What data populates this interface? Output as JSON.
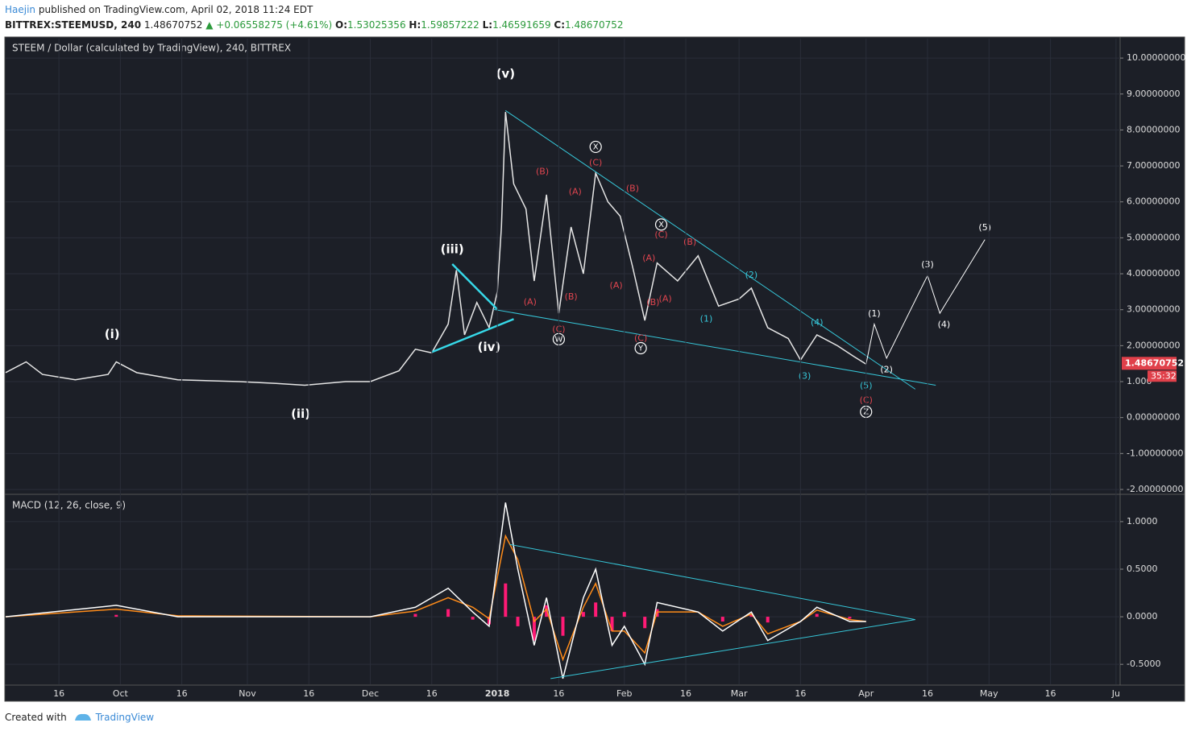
{
  "header": {
    "author": "Haejin",
    "published": "published on TradingView.com, April 02, 2018 11:24 EDT",
    "symbol": "BITTREX:STEEMUSD, 240",
    "last": "1.48670752",
    "change": "▲ +0.06558275 (+4.61%)",
    "ohlc": [
      {
        "label": "O:",
        "value": "1.53025356"
      },
      {
        "label": "H:",
        "value": "1.59857222"
      },
      {
        "label": "L:",
        "value": "1.46591659"
      },
      {
        "label": "C:",
        "value": "1.48670752"
      }
    ]
  },
  "chart_data": [
    {
      "type": "line",
      "title": "STEEM / Dollar (calculated by TradingView), 240, BITTREX",
      "x": [
        "2017-09-03",
        "2017-09-08",
        "2017-09-12",
        "2017-09-20",
        "2017-09-28",
        "2017-09-30",
        "2017-10-05",
        "2017-10-15",
        "2017-10-30",
        "2017-11-08",
        "2017-11-15",
        "2017-11-25",
        "2017-12-01",
        "2017-12-08",
        "2017-12-12",
        "2017-12-16",
        "2017-12-20",
        "2017-12-22",
        "2017-12-24",
        "2017-12-27",
        "2017-12-30",
        "2018-01-01",
        "2018-01-02",
        "2018-01-03",
        "2018-01-05",
        "2018-01-08",
        "2018-01-10",
        "2018-01-13",
        "2018-01-16",
        "2018-01-19",
        "2018-01-22",
        "2018-01-25",
        "2018-01-28",
        "2018-01-31",
        "2018-02-03",
        "2018-02-06",
        "2018-02-09",
        "2018-02-14",
        "2018-02-19",
        "2018-02-24",
        "2018-03-01",
        "2018-03-04",
        "2018-03-08",
        "2018-03-13",
        "2018-03-16",
        "2018-03-20",
        "2018-03-25",
        "2018-03-29",
        "2018-04-01"
      ],
      "series": [
        {
          "color": "#e6e6e6",
          "values": [
            1.25,
            1.55,
            1.2,
            1.05,
            1.2,
            1.55,
            1.25,
            1.05,
            1.0,
            0.95,
            0.9,
            1.0,
            1.0,
            1.3,
            1.9,
            1.8,
            2.6,
            4.1,
            2.3,
            3.2,
            2.5,
            3.5,
            5.3,
            8.5,
            6.5,
            5.8,
            3.8,
            6.2,
            2.9,
            5.3,
            4.0,
            6.8,
            6.0,
            5.6,
            4.2,
            2.7,
            4.3,
            3.8,
            4.5,
            3.1,
            3.3,
            3.6,
            2.5,
            2.2,
            1.6,
            2.3,
            2.0,
            1.7,
            1.48670752
          ]
        }
      ],
      "xlim": [
        "2017-09-03",
        "2018-06-02"
      ],
      "ylim": [
        -2.09,
        10.54
      ],
      "yticks": [
        {
          "value": 10,
          "label": "10.00000000"
        },
        {
          "value": 9,
          "label": "9.00000000"
        },
        {
          "value": 8,
          "label": "8.00000000"
        },
        {
          "value": 7,
          "label": "7.00000000"
        },
        {
          "value": 6,
          "label": "6.00000000"
        },
        {
          "value": 5,
          "label": "5.00000000"
        },
        {
          "value": 4,
          "label": "4.00000000"
        },
        {
          "value": 3,
          "label": "3.00000000"
        },
        {
          "value": 2,
          "label": "2.00000000"
        },
        {
          "value": 1,
          "label": "1.000"
        },
        {
          "value": 0,
          "label": "0.00000000"
        },
        {
          "value": -1,
          "label": "-1.00000000"
        },
        {
          "value": -2,
          "label": "-2.00000000"
        }
      ],
      "grid": true,
      "last_price": {
        "value": 1.48670752,
        "label": "1.48670752",
        "color": "#e0404a"
      },
      "countdown": "35:32",
      "trendlines": [
        {
          "x": [
            "2018-01-03",
            "2018-04-13"
          ],
          "y": [
            8.54,
            0.79
          ],
          "color": "#36c6d8",
          "width": 1
        },
        {
          "x": [
            "2017-12-31",
            "2018-04-18"
          ],
          "y": [
            3.01,
            0.9
          ],
          "color": "#36c6d8",
          "width": 1
        },
        {
          "x": [
            "2017-12-16",
            "2018-01-05"
          ],
          "y": [
            1.82,
            2.74
          ],
          "color": "#36d8e8",
          "width": 2.5
        },
        {
          "x": [
            "2017-12-21",
            "2018-01-01"
          ],
          "y": [
            4.27,
            3.01
          ],
          "color": "#36d8e8",
          "width": 2.5
        }
      ],
      "projection": {
        "color": "#ffffff",
        "x": [
          "2018-04-01",
          "2018-04-03",
          "2018-04-06",
          "2018-04-16",
          "2018-04-19",
          "2018-04-30"
        ],
        "values": [
          1.48670752,
          2.6,
          1.65,
          3.95,
          2.9,
          4.95
        ]
      },
      "annotations": [
        {
          "text": "(i)",
          "x": "2017-09-29",
          "y": 2.31,
          "color": "#ffffff",
          "bold": true
        },
        {
          "text": "(ii)",
          "x": "2017-11-14",
          "y": 0.09,
          "color": "#ffffff",
          "bold": true
        },
        {
          "text": "(iii)",
          "x": "2017-12-21",
          "y": 4.67,
          "color": "#ffffff",
          "bold": true
        },
        {
          "text": "(iv)",
          "x": "2017-12-30",
          "y": 1.95,
          "color": "#ffffff",
          "bold": true
        },
        {
          "text": "(v)",
          "x": "2018-01-03",
          "y": 9.55,
          "color": "#ffffff",
          "bold": true
        },
        {
          "text": "(A)",
          "x": "2018-01-09",
          "y": 3.21,
          "color": "#e0454f"
        },
        {
          "text": "(B)",
          "x": "2018-01-12",
          "y": 6.83,
          "color": "#e0454f"
        },
        {
          "text": "(C)",
          "x": "2018-01-16",
          "y": 2.45,
          "color": "#e0454f"
        },
        {
          "text": "W",
          "x": "2018-01-16",
          "y": 2.18,
          "color": "#ffffff",
          "circle": true
        },
        {
          "text": "(A)",
          "x": "2018-01-20",
          "y": 6.27,
          "color": "#e0454f"
        },
        {
          "text": "(B)",
          "x": "2018-01-19",
          "y": 3.35,
          "color": "#e0454f"
        },
        {
          "text": "(C)",
          "x": "2018-01-25",
          "y": 7.08,
          "color": "#e0454f"
        },
        {
          "text": "X",
          "x": "2018-01-25",
          "y": 7.53,
          "color": "#ffffff",
          "circle": true
        },
        {
          "text": "(B)",
          "x": "2018-02-03",
          "y": 6.36,
          "color": "#e0454f"
        },
        {
          "text": "(A)",
          "x": "2018-01-30",
          "y": 3.66,
          "color": "#e0454f"
        },
        {
          "text": "(C)",
          "x": "2018-02-05",
          "y": 2.2,
          "color": "#e0454f"
        },
        {
          "text": "Y",
          "x": "2018-02-05",
          "y": 1.93,
          "color": "#ffffff",
          "circle": true
        },
        {
          "text": "(A)",
          "x": "2018-02-07",
          "y": 4.43,
          "color": "#e0454f"
        },
        {
          "text": "(B)",
          "x": "2018-02-08",
          "y": 3.19,
          "color": "#e0454f"
        },
        {
          "text": "(A)",
          "x": "2018-02-11",
          "y": 3.3,
          "color": "#e0454f"
        },
        {
          "text": "X",
          "x": "2018-02-10",
          "y": 5.37,
          "color": "#ffffff",
          "circle": true
        },
        {
          "text": "(C)",
          "x": "2018-02-10",
          "y": 5.08,
          "color": "#e0454f"
        },
        {
          "text": "(B)",
          "x": "2018-02-17",
          "y": 4.88,
          "color": "#e0454f"
        },
        {
          "text": "(1)",
          "x": "2018-02-21",
          "y": 2.74,
          "color": "#36c6d8"
        },
        {
          "text": "(2)",
          "x": "2018-03-04",
          "y": 3.96,
          "color": "#36c6d8"
        },
        {
          "text": "(3)",
          "x": "2018-03-17",
          "y": 1.15,
          "color": "#36c6d8"
        },
        {
          "text": "(4)",
          "x": "2018-03-20",
          "y": 2.63,
          "color": "#36c6d8"
        },
        {
          "text": "(5)",
          "x": "2018-04-01",
          "y": 0.88,
          "color": "#36c6d8"
        },
        {
          "text": "(C)",
          "x": "2018-04-01",
          "y": 0.47,
          "color": "#e0454f"
        },
        {
          "text": "Z",
          "x": "2018-04-01",
          "y": 0.16,
          "color": "#ffffff",
          "circle": true
        },
        {
          "text": "(1)",
          "x": "2018-04-03",
          "y": 2.88,
          "color": "#ffffff"
        },
        {
          "text": "(2)",
          "x": "2018-04-06",
          "y": 1.33,
          "color": "#ffffff"
        },
        {
          "text": "(3)",
          "x": "2018-04-16",
          "y": 4.25,
          "color": "#ffffff"
        },
        {
          "text": "(4)",
          "x": "2018-04-20",
          "y": 2.58,
          "color": "#ffffff"
        },
        {
          "text": "(5)",
          "x": "2018-04-30",
          "y": 5.28,
          "color": "#ffffff"
        }
      ]
    },
    {
      "type": "line",
      "title": "MACD (12, 26, close, 9)",
      "x": [
        "2017-09-03",
        "2017-09-30",
        "2017-10-15",
        "2017-12-01",
        "2017-12-12",
        "2017-12-20",
        "2017-12-26",
        "2017-12-30",
        "2018-01-03",
        "2018-01-06",
        "2018-01-10",
        "2018-01-13",
        "2018-01-17",
        "2018-01-22",
        "2018-01-25",
        "2018-01-29",
        "2018-02-01",
        "2018-02-06",
        "2018-02-09",
        "2018-02-19",
        "2018-02-25",
        "2018-03-04",
        "2018-03-08",
        "2018-03-16",
        "2018-03-20",
        "2018-03-28",
        "2018-04-01"
      ],
      "series": [
        {
          "color": "#ff1a75",
          "kind": "bar",
          "values": [
            0,
            0.02,
            0,
            0,
            0.03,
            0.08,
            -0.03,
            -0.08,
            0.35,
            -0.1,
            -0.25,
            0.12,
            -0.2,
            0.05,
            0.15,
            -0.15,
            0.05,
            -0.12,
            0.08,
            0,
            -0.05,
            0.02,
            -0.06,
            0,
            0.03,
            -0.02,
            0
          ]
        },
        {
          "color": "#ff8c1a",
          "values": [
            0,
            0.08,
            0.01,
            0,
            0.06,
            0.2,
            0.1,
            -0.02,
            0.85,
            0.6,
            -0.05,
            0.08,
            -0.45,
            0.1,
            0.35,
            -0.15,
            -0.15,
            -0.38,
            0.05,
            0.05,
            -0.1,
            0.03,
            -0.18,
            -0.05,
            0.07,
            -0.03,
            -0.05
          ]
        },
        {
          "color": "#ffffff",
          "values": [
            0,
            0.12,
            0,
            0,
            0.1,
            0.3,
            0.05,
            -0.1,
            1.2,
            0.5,
            -0.3,
            0.2,
            -0.65,
            0.2,
            0.5,
            -0.3,
            -0.1,
            -0.5,
            0.15,
            0.05,
            -0.15,
            0.05,
            -0.25,
            -0.05,
            0.1,
            -0.05,
            -0.05
          ]
        }
      ],
      "xlim": [
        "2017-09-03",
        "2018-06-02"
      ],
      "ylim": [
        -0.71,
        1.27
      ],
      "yticks": [
        {
          "value": 1,
          "label": "1.0000"
        },
        {
          "value": 0.5,
          "label": "0.5000"
        },
        {
          "value": 0,
          "label": "0.0000"
        },
        {
          "value": -0.5,
          "label": "-0.5000"
        }
      ],
      "grid": true,
      "xticks": [
        {
          "value": "2017-09-16",
          "label": "16"
        },
        {
          "value": "2017-10-01",
          "label": "Oct"
        },
        {
          "value": "2017-10-16",
          "label": "16"
        },
        {
          "value": "2017-11-01",
          "label": "Nov"
        },
        {
          "value": "2017-11-16",
          "label": "16"
        },
        {
          "value": "2017-12-01",
          "label": "Dec"
        },
        {
          "value": "2017-12-16",
          "label": "16"
        },
        {
          "value": "2018-01-01",
          "label": "2018"
        },
        {
          "value": "2018-01-16",
          "label": "16"
        },
        {
          "value": "2018-02-01",
          "label": "Feb"
        },
        {
          "value": "2018-02-16",
          "label": "16"
        },
        {
          "value": "2018-03-01",
          "label": "Mar"
        },
        {
          "value": "2018-03-16",
          "label": "16"
        },
        {
          "value": "2018-04-01",
          "label": "Apr"
        },
        {
          "value": "2018-04-16",
          "label": "16"
        },
        {
          "value": "2018-05-01",
          "label": "May"
        },
        {
          "value": "2018-05-16",
          "label": "16"
        },
        {
          "value": "2018-06-01",
          "label": "Ju"
        }
      ],
      "trendlines": [
        {
          "x": [
            "2018-01-04",
            "2018-04-13"
          ],
          "y": [
            0.76,
            -0.03
          ],
          "color": "#36c6d8",
          "width": 1
        },
        {
          "x": [
            "2018-01-14",
            "2018-04-13"
          ],
          "y": [
            -0.65,
            -0.03
          ],
          "color": "#36c6d8",
          "width": 1
        }
      ]
    }
  ],
  "footer": {
    "created": "Created with",
    "brand": "TradingView"
  }
}
